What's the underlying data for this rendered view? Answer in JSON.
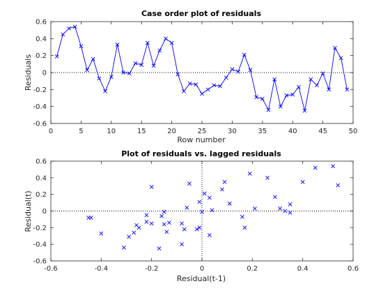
{
  "chart_data": [
    {
      "type": "line",
      "title": "Case order plot of residuals",
      "xlabel": "Row number",
      "ylabel": "Residuals",
      "xlim": [
        0,
        50
      ],
      "ylim": [
        -0.6,
        0.6
      ],
      "xticks": [
        0,
        5,
        10,
        15,
        20,
        25,
        30,
        35,
        40,
        45,
        50
      ],
      "yticks": [
        -0.6,
        -0.4,
        -0.2,
        0,
        0.2,
        0.4,
        0.6
      ],
      "ytick_labels": [
        "-0.6",
        "-0.4",
        "-0.2",
        "0",
        "0.2",
        "0.4",
        "0.6"
      ],
      "reference_line": 0,
      "marker": "x",
      "color": "#0000ff",
      "x": [
        1,
        2,
        3,
        4,
        5,
        6,
        7,
        8,
        9,
        10,
        11,
        12,
        13,
        14,
        15,
        16,
        17,
        18,
        19,
        20,
        21,
        22,
        23,
        24,
        25,
        26,
        27,
        28,
        29,
        30,
        31,
        32,
        33,
        34,
        35,
        36,
        37,
        38,
        39,
        40,
        41,
        42,
        43,
        44,
        45,
        46,
        47,
        48,
        49
      ],
      "values": [
        0.19,
        0.45,
        0.52,
        0.54,
        0.31,
        0.03,
        0.16,
        -0.07,
        -0.22,
        -0.05,
        0.33,
        0.0,
        -0.01,
        0.11,
        0.09,
        0.35,
        0.08,
        0.26,
        0.4,
        0.35,
        -0.02,
        -0.22,
        -0.13,
        -0.14,
        -0.25,
        -0.2,
        -0.15,
        -0.16,
        -0.06,
        0.04,
        0.01,
        0.21,
        0.03,
        -0.29,
        -0.31,
        -0.44,
        -0.08,
        -0.4,
        -0.27,
        -0.26,
        -0.17,
        -0.45,
        -0.08,
        -0.15,
        -0.01,
        -0.2,
        0.29,
        0.17,
        -0.2
      ]
    },
    {
      "type": "scatter",
      "title": "Plot of residuals vs. lagged residuals",
      "xlabel": "Residual(t-1)",
      "ylabel": "Residual(t)",
      "xlim": [
        -0.6,
        0.6
      ],
      "ylim": [
        -0.6,
        0.6
      ],
      "xticks": [
        -0.6,
        -0.4,
        -0.2,
        0,
        0.2,
        0.4,
        0.6
      ],
      "xtick_labels": [
        "-0.6",
        "-0.4",
        "-0.2",
        "0",
        "0.2",
        "0.4",
        "0.6"
      ],
      "yticks": [
        -0.6,
        -0.4,
        -0.2,
        0,
        0.2,
        0.4,
        0.6
      ],
      "ytick_labels": [
        "-0.6",
        "-0.4",
        "-0.2",
        "0",
        "0.2",
        "0.4",
        "0.6"
      ],
      "reference_lines": {
        "x": 0,
        "y": 0
      },
      "marker": "x",
      "color": "#0000ff",
      "x": [
        0.19,
        0.45,
        0.52,
        0.54,
        0.31,
        0.03,
        0.16,
        -0.07,
        -0.22,
        -0.05,
        0.33,
        0.0,
        -0.01,
        0.11,
        0.09,
        0.35,
        0.08,
        0.26,
        0.4,
        0.35,
        -0.02,
        -0.22,
        -0.13,
        -0.14,
        -0.25,
        -0.2,
        -0.15,
        -0.16,
        -0.06,
        0.04,
        0.01,
        0.21,
        0.03,
        -0.29,
        -0.31,
        -0.44,
        -0.08,
        -0.4,
        -0.27,
        -0.26,
        -0.17,
        -0.45,
        -0.08,
        -0.15,
        -0.01,
        -0.2,
        0.29,
        0.17
      ],
      "y": [
        0.45,
        0.52,
        0.54,
        0.31,
        0.03,
        0.16,
        -0.07,
        -0.22,
        -0.05,
        0.33,
        0.0,
        -0.01,
        0.11,
        0.09,
        0.35,
        0.08,
        0.26,
        0.4,
        0.35,
        -0.02,
        -0.22,
        -0.13,
        -0.14,
        -0.25,
        -0.2,
        -0.15,
        -0.16,
        -0.06,
        0.04,
        0.01,
        0.21,
        0.03,
        -0.29,
        -0.31,
        -0.44,
        -0.08,
        -0.4,
        -0.27,
        -0.26,
        -0.17,
        -0.45,
        -0.08,
        -0.15,
        -0.01,
        -0.2,
        0.29,
        0.17,
        -0.2
      ]
    }
  ]
}
